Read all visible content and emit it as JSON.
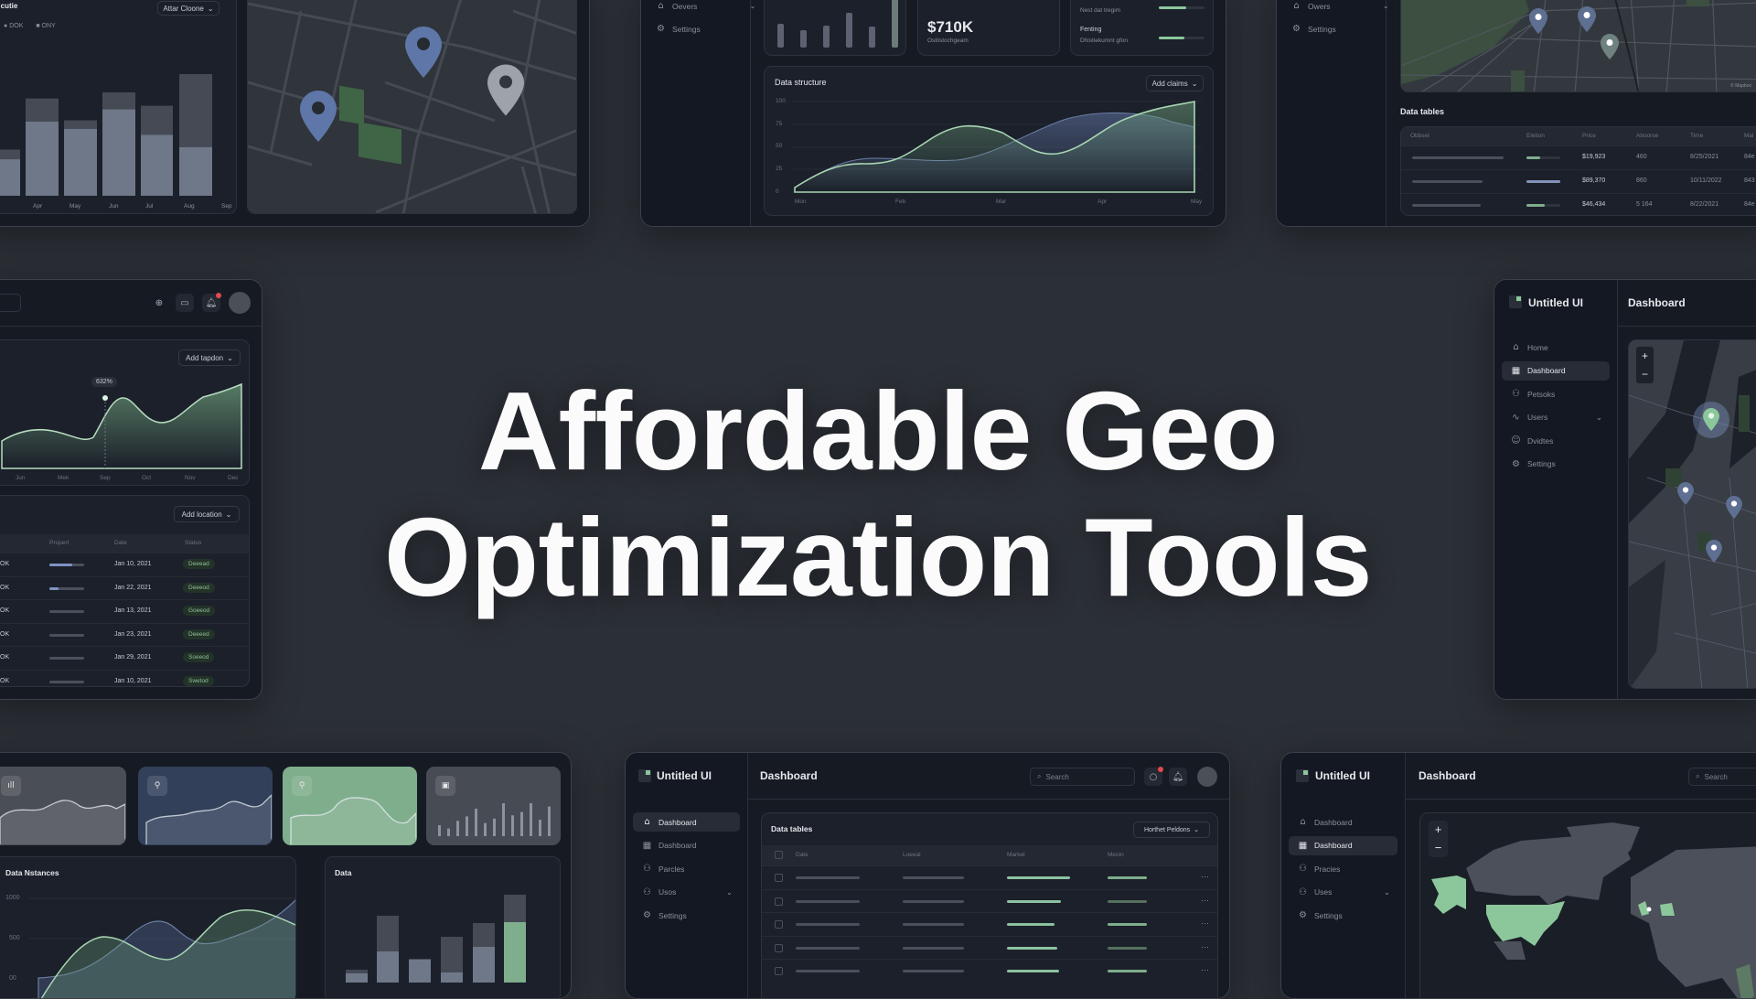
{
  "hero": {
    "line1": "Affordable Geo",
    "line2": "Optimization Tools"
  },
  "colors": {
    "background": "#2b2f36",
    "panel": "#161a23",
    "accent_green": "#7fae8c",
    "accent_blue": "#5d76a6",
    "alert_red": "#e5484d"
  },
  "top_left": {
    "chart_title": "e cutie",
    "dropdown": "Attar Cloone",
    "legend": [
      "DOK",
      "ONY"
    ],
    "months": [
      "s",
      "Apr",
      "May",
      "Jun",
      "Jul",
      "Aug",
      "Sep"
    ],
    "bars_total": [
      38,
      80,
      62,
      85,
      74,
      100
    ],
    "bars_lower": [
      30,
      61,
      55,
      71,
      50,
      40
    ],
    "map_pins": [
      "location-pin-icon",
      "location-pin-icon",
      "location-pin-icon"
    ]
  },
  "top_center": {
    "sidebar": [
      {
        "label": "Oevers",
        "icon": "building-icon"
      },
      {
        "label": "Settings",
        "icon": "gear-icon"
      }
    ],
    "stat_value": "$710K",
    "stat_sub": "Ostlistochgeam",
    "progress": [
      {
        "label": "",
        "sub": "Nest dat tregim",
        "value": 0.6
      },
      {
        "label": "Fenting",
        "sub": "Dhistiekumnt gfon",
        "value": 0.55
      }
    ],
    "chart": {
      "title": "Data structure",
      "button": "Add claims",
      "y_ticks": [
        "100",
        "75",
        "50",
        "25",
        "0"
      ],
      "x_labels": [
        "Mon",
        "Feb",
        "Mar",
        "Apr",
        "May"
      ]
    }
  },
  "top_right": {
    "sidebar": [
      {
        "label": "Owers",
        "icon": "home-icon"
      },
      {
        "label": "Settings",
        "icon": "gear-icon"
      }
    ],
    "map_attribution": "© Mapbox",
    "table_title": "Data tables",
    "headers": [
      "Obbset",
      "Eletion",
      "Price",
      "Aboorse",
      "Time",
      "Mal"
    ],
    "rows": [
      {
        "price": "$19,923",
        "amount": "460",
        "time": "8/25/2021",
        "mal": "84e",
        "level": 0.4,
        "color": "#7fae8c"
      },
      {
        "price": "$89,370",
        "amount": "860",
        "time": "10/11/2022",
        "mal": "843",
        "level": 1.0,
        "color": "#8293b8"
      },
      {
        "price": "$46,434",
        "amount": "5 164",
        "time": "8/22/2021",
        "mal": "84e",
        "level": 0.55,
        "color": "#7fae8c"
      }
    ]
  },
  "mid_left": {
    "chart_button": "Add tapdon",
    "tooltip": "632%",
    "x_labels": [
      "Jun",
      "Mek",
      "Sep",
      "Oct",
      "Nov",
      "Dec"
    ],
    "table_button": "Add location",
    "headers": [
      "Propert",
      "Date",
      "Status"
    ],
    "rows": [
      {
        "value": "OK",
        "date": "Jan 10, 2021",
        "status": "Deeead",
        "level": 0.65,
        "color": "#7f93c2"
      },
      {
        "value": "OK",
        "date": "Jan 22, 2021",
        "status": "Deeeod",
        "level": 0.25,
        "color": "#7f93c2"
      },
      {
        "value": "OK",
        "date": "Jan 13, 2021",
        "status": "Goeeod",
        "level": 0,
        "color": "#4a505b"
      },
      {
        "value": "OK",
        "date": "Jan 23, 2021",
        "status": "Deeeed",
        "level": 0,
        "color": "#4a505b"
      },
      {
        "value": "OK",
        "date": "Jan 29, 2021",
        "status": "Soeeod",
        "level": 0,
        "color": "#4a505b"
      },
      {
        "value": "OK",
        "date": "Jan 10, 2021",
        "status": "Swetod",
        "level": 0,
        "color": "#4a505b"
      }
    ]
  },
  "mid_right": {
    "brand": "Untitled UI",
    "title": "Dashboard",
    "nav": [
      {
        "label": "Home",
        "icon": "home-icon",
        "glyph": "⌂"
      },
      {
        "label": "Dashboard",
        "icon": "grid-icon",
        "glyph": "▦",
        "active": true
      },
      {
        "label": "Petsoks",
        "icon": "users-icon",
        "glyph": "⚇"
      },
      {
        "label": "Users",
        "icon": "chart-line-icon",
        "glyph": "∿",
        "chevron": true
      },
      {
        "label": "Dvidtes",
        "icon": "badge-icon",
        "glyph": "☺"
      },
      {
        "label": "Settings",
        "icon": "gear-icon",
        "glyph": "⚙"
      }
    ],
    "zoom_in": "+",
    "zoom_out": "−"
  },
  "bottom_left": {
    "cards": [
      {
        "icon": "signal-bars-icon",
        "glyph": "ıll",
        "bg": "#4a4e56"
      },
      {
        "icon": "location-pin-icon",
        "glyph": "⚲",
        "bg": "#33405a"
      },
      {
        "icon": "location-pin-icon",
        "glyph": "⚲",
        "bg": "#7fae8c"
      },
      {
        "icon": "calendar-icon",
        "glyph": "▣",
        "bg": "#474b53"
      }
    ],
    "line_title": "Data Nstances",
    "y_ticks": [
      "1000",
      "500",
      "00"
    ],
    "bar_title": "Data",
    "bars_total": [
      14,
      73,
      26,
      50,
      65,
      96
    ],
    "bars_lower": [
      10,
      34,
      25,
      11,
      39,
      66
    ]
  },
  "bottom_center": {
    "brand": "Untitled UI",
    "title": "Dashboard",
    "search_placeholder": "Search",
    "nav": [
      {
        "label": "Dashboard",
        "icon": "home-icon",
        "glyph": "⌂",
        "active": true
      },
      {
        "label": "Dashboard",
        "icon": "grid-icon",
        "glyph": "▦"
      },
      {
        "label": "Parcles",
        "icon": "users-icon",
        "glyph": "⚇"
      },
      {
        "label": "Usos",
        "icon": "users-icon",
        "glyph": "⚇",
        "chevron": true
      },
      {
        "label": "Settings",
        "icon": "gear-icon",
        "glyph": "⚙"
      }
    ],
    "table_title": "Data tables",
    "table_button": "Horthet Peldons",
    "headers": [
      "Date",
      "Loeeal",
      "Market",
      "Meoin"
    ],
    "market_levels": [
      1.0,
      0.85,
      0.75,
      0.8,
      0.82
    ]
  },
  "bottom_right": {
    "brand": "Untitled UI",
    "title": "Dashboard",
    "search_placeholder": "Search",
    "nav": [
      {
        "label": "Dashboard",
        "icon": "home-icon",
        "glyph": "⌂"
      },
      {
        "label": "Dashboard",
        "icon": "grid-icon",
        "glyph": "▦",
        "active": true
      },
      {
        "label": "Pracies",
        "icon": "users-icon",
        "glyph": "⚇"
      },
      {
        "label": "Uses",
        "icon": "users-icon",
        "glyph": "⚇",
        "chevron": true
      },
      {
        "label": "Settings",
        "icon": "gear-icon",
        "glyph": "⚙"
      }
    ],
    "zoom_in": "+",
    "zoom_out": "−"
  }
}
